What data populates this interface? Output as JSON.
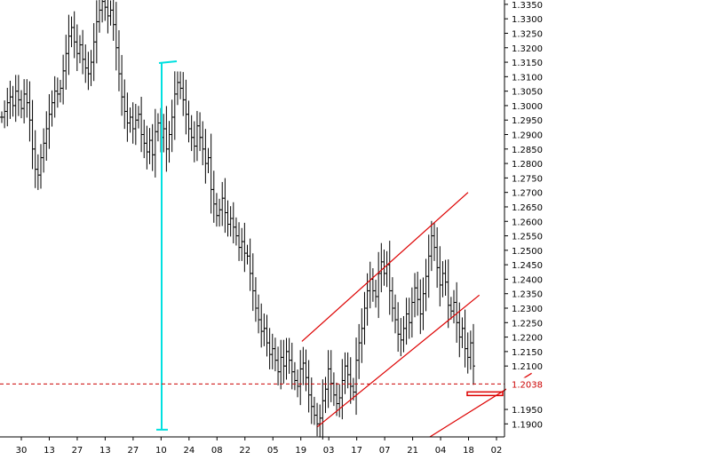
{
  "chart_data": {
    "type": "ohlc",
    "title": "",
    "xlabel": "",
    "ylabel": "",
    "ylim": [
      1.1855,
      1.3365
    ],
    "grid": false,
    "legend": "none",
    "y_ticks": [
      "1.1900",
      "1.1950",
      "1.2100",
      "1.2150",
      "1.2200",
      "1.2250",
      "1.2300",
      "1.2350",
      "1.2400",
      "1.2450",
      "1.2500",
      "1.2550",
      "1.2600",
      "1.2650",
      "1.2700",
      "1.2750",
      "1.2800",
      "1.2850",
      "1.2900",
      "1.2950",
      "1.3000",
      "1.3050",
      "1.3100",
      "1.3150",
      "1.3200",
      "1.3250",
      "1.3300",
      "1.3350"
    ],
    "x_ticks": [
      "30",
      "13",
      "27",
      "13",
      "27",
      "10",
      "24",
      "08",
      "22",
      "05",
      "19",
      "03",
      "17",
      "07",
      "21",
      "04",
      "18",
      "02"
    ],
    "price_marker": {
      "value": 1.2038,
      "label": "1.2038",
      "color": "#cc0000"
    },
    "bar_color": "#000000",
    "series": [
      {
        "values": [
          1.296,
          1.298,
          1.301,
          1.303,
          1.3,
          1.305,
          1.302,
          1.299,
          1.304,
          1.301,
          1.295,
          1.285,
          1.278,
          1.276,
          1.282,
          1.287,
          1.292,
          1.297,
          1.301,
          1.305,
          1.304,
          1.306,
          1.312,
          1.318,
          1.324,
          1.327,
          1.322,
          1.318,
          1.321,
          1.316,
          1.313,
          1.311,
          1.315,
          1.322,
          1.329,
          1.333,
          1.336,
          1.334,
          1.331,
          1.333,
          1.328,
          1.32,
          1.311,
          1.303,
          1.298,
          1.294,
          1.296,
          1.292,
          1.295,
          1.297,
          1.29,
          1.287,
          1.284,
          1.288,
          1.283,
          1.291,
          1.294,
          1.289,
          1.292,
          1.285,
          1.29,
          1.296,
          1.304,
          1.308,
          1.306,
          1.302,
          1.297,
          1.292,
          1.289,
          1.286,
          1.293,
          1.289,
          1.285,
          1.28,
          1.282,
          1.271,
          1.266,
          1.262,
          1.264,
          1.268,
          1.263,
          1.259,
          1.261,
          1.258,
          1.255,
          1.251,
          1.253,
          1.249,
          1.248,
          1.242,
          1.236,
          1.23,
          1.226,
          1.222,
          1.223,
          1.218,
          1.214,
          1.216,
          1.212,
          1.208,
          1.213,
          1.21,
          1.215,
          1.212,
          1.208,
          1.205,
          1.203,
          1.209,
          1.211,
          1.206,
          1.2,
          1.196,
          1.193,
          1.19,
          1.192,
          1.198,
          1.202,
          1.209,
          1.204,
          1.2,
          1.197,
          1.199,
          1.205,
          1.21,
          1.207,
          1.203,
          1.201,
          1.212,
          1.218,
          1.223,
          1.23,
          1.236,
          1.24,
          1.236,
          1.234,
          1.242,
          1.246,
          1.242,
          1.245,
          1.236,
          1.23,
          1.226,
          1.221,
          1.219,
          1.223,
          1.228,
          1.225,
          1.232,
          1.237,
          1.233,
          1.228,
          1.235,
          1.241,
          1.248,
          1.255,
          1.251,
          1.244,
          1.238,
          1.242,
          1.239,
          1.231,
          1.229,
          1.232,
          1.225,
          1.22,
          1.223,
          1.216,
          1.213,
          1.218,
          1.21
        ]
      }
    ],
    "annotations": {
      "vertical_range_line": {
        "from": 1.188,
        "to": 1.315,
        "color": "#00e0e0"
      },
      "channel_lines": [
        {
          "from": [
            0.427,
            1.2185
          ],
          "to": [
            0.662,
            1.27
          ],
          "color": "#dd0000"
        },
        {
          "from": [
            0.449,
            1.189
          ],
          "to": [
            0.678,
            1.2345
          ],
          "color": "#dd0000"
        },
        {
          "from": [
            0.608,
            1.1855
          ],
          "to": [
            0.752,
            1.2075
          ],
          "color": "#dd0000"
        }
      ],
      "marker_box": {
        "value": 1.2038,
        "color": "#dd0000"
      }
    }
  }
}
